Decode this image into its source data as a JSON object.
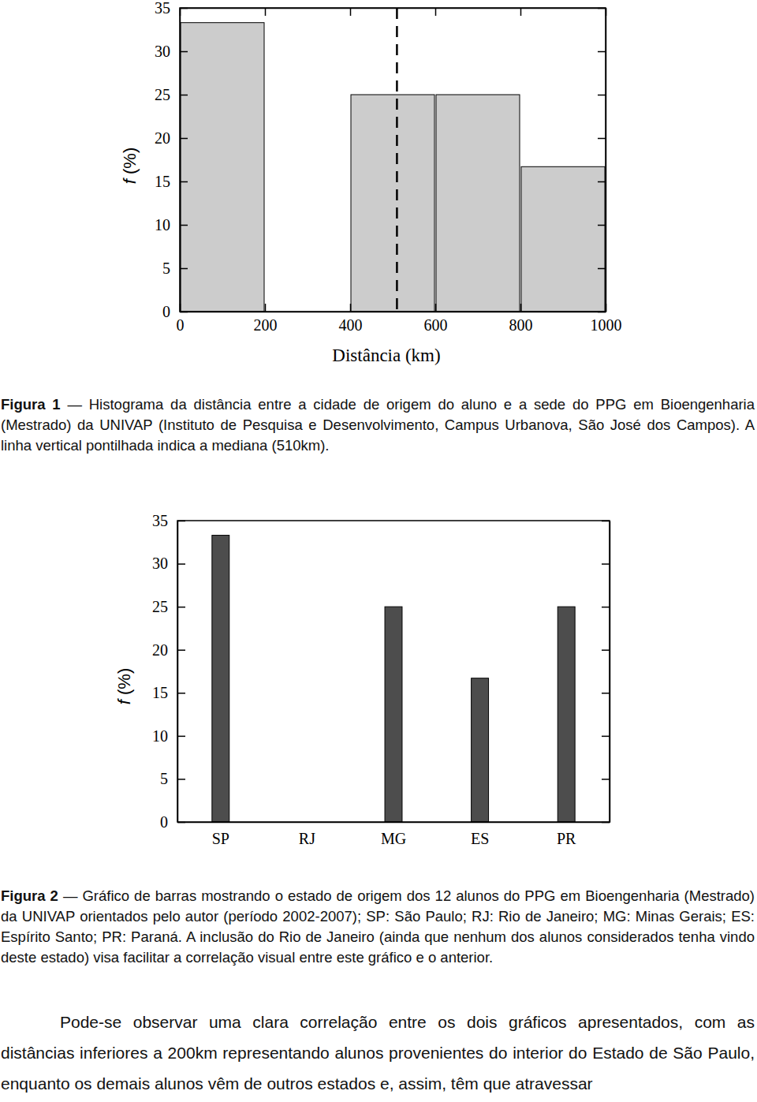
{
  "chart_data": [
    {
      "type": "histogram",
      "bins": [
        0,
        200,
        400,
        600,
        800,
        1000
      ],
      "values": [
        33.3,
        0,
        25,
        25,
        16.7
      ],
      "color": "#cccccc",
      "median": 510,
      "x_label": "Distância (km)",
      "y_label": "f (%)",
      "xlim": [
        0,
        1000
      ],
      "ylim": [
        0,
        35
      ],
      "xticks": [
        0,
        200,
        400,
        600,
        800,
        1000
      ],
      "yticks": [
        0,
        5,
        10,
        15,
        20,
        25,
        30,
        35
      ]
    },
    {
      "type": "bar",
      "categories": [
        "SP",
        "RJ",
        "MG",
        "ES",
        "PR"
      ],
      "values": [
        33.3,
        0,
        25,
        16.7,
        25
      ],
      "color": "#4d4d4d",
      "y_label": "f (%)",
      "ylim": [
        0,
        35
      ],
      "yticks": [
        0,
        5,
        10,
        15,
        20,
        25,
        30,
        35
      ]
    }
  ],
  "captions": [
    {
      "label": "Figura 1",
      "text": "— Histograma da distância entre a cidade de origem do aluno e a sede do PPG em Bioengenharia (Mestrado) da UNIVAP (Instituto de Pesquisa e Desenvolvimento, Campus Urbanova, São José dos Campos). A linha vertical pontilhada indica a mediana (510km)."
    },
    {
      "label": "Figura 2",
      "text": "— Gráfico de barras mostrando o estado de origem dos 12 alunos do PPG em Bioengenharia (Mestrado) da UNIVAP orientados pelo autor (período 2002-2007); SP: São Paulo; RJ: Rio de Janeiro; MG: Minas Gerais; ES: Espírito Santo; PR: Paraná. A inclusão do Rio de Janeiro (ainda que nenhum dos alunos considerados tenha vindo deste estado) visa facilitar a correlação visual entre este gráfico e o anterior."
    }
  ],
  "body": "Pode-se observar uma clara correlação entre os dois gráficos apresentados, com as distâncias inferiores a 200km representando alunos provenientes do interior do Estado de São Paulo, enquanto os demais alunos vêm de outros estados e, assim, têm que atravessar"
}
